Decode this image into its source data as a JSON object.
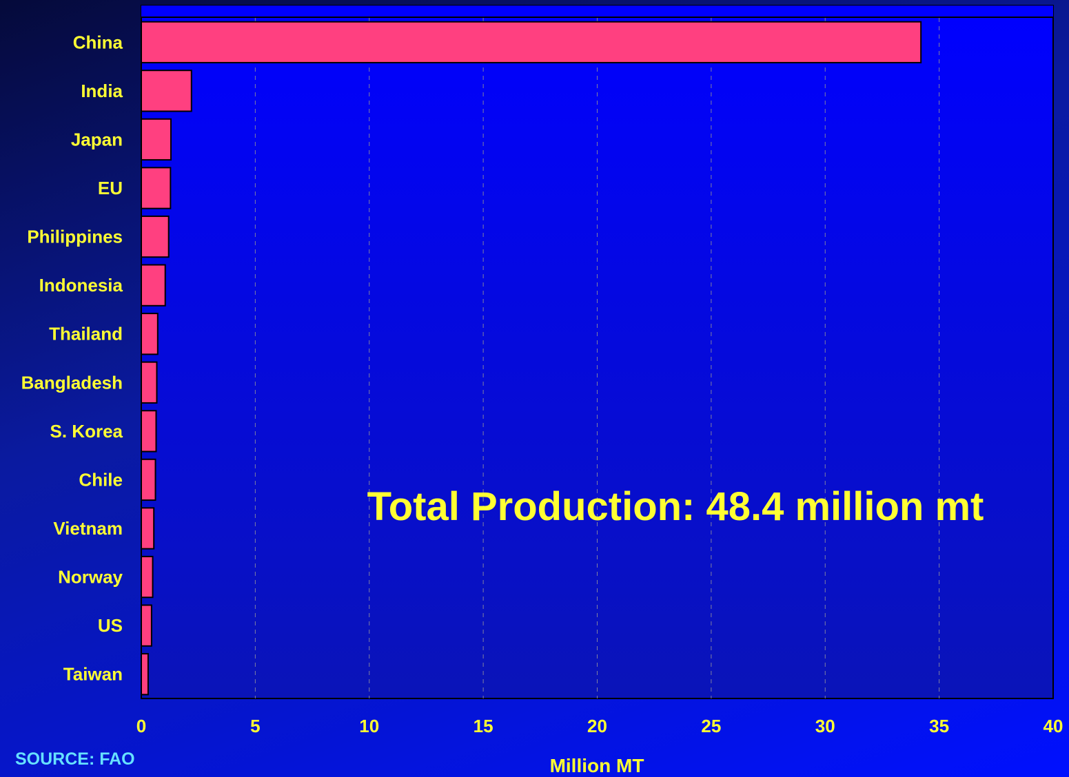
{
  "chart_data": {
    "type": "bar",
    "orientation": "horizontal",
    "categories": [
      "China",
      "India",
      "Japan",
      "EU",
      "Philippines",
      "Indonesia",
      "Thailand",
      "Bangladesh",
      "S. Korea",
      "Chile",
      "Vietnam",
      "Norway",
      "US",
      "Taiwan"
    ],
    "values": [
      34.2,
      2.2,
      1.3,
      1.28,
      1.2,
      1.05,
      0.72,
      0.68,
      0.65,
      0.62,
      0.55,
      0.5,
      0.45,
      0.3
    ],
    "xlabel": "Million MT",
    "xlim": [
      0,
      40
    ],
    "xticks": [
      0,
      5,
      10,
      15,
      20,
      25,
      30,
      35,
      40
    ],
    "grid": "vertical dashed",
    "annotation": "Total Production: 48.4 million mt",
    "source": "SOURCE: FAO",
    "colors": {
      "bar": "#ff4080",
      "plot_bg": "#0000ff",
      "plot_border": "#000000",
      "text": "#ffff33",
      "source_text": "#66e0ff",
      "grid": "#8080a0"
    }
  }
}
